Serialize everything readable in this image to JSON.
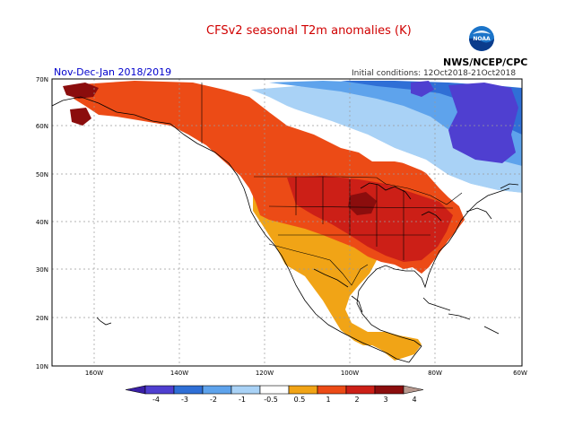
{
  "title": "CFSv2 seasonal T2m anomalies (K)",
  "period": "Nov-Dec-Jan 2018/2019",
  "initial_conditions": "Initial conditions: 12Oct2018-21Oct2018",
  "agency": "NWS/NCEP/CPC",
  "logo_text": "NOAA",
  "lat_ticks": [
    "70N",
    "60N",
    "50N",
    "40N",
    "30N",
    "20N",
    "10N"
  ],
  "lon_ticks": [
    "160W",
    "140W",
    "120W",
    "100W",
    "80W",
    "60W"
  ],
  "colorbar": {
    "labels": [
      "-4",
      "-3",
      "-2",
      "-1",
      "-0.5",
      "0.5",
      "1",
      "2",
      "3",
      "4"
    ],
    "colors": [
      "#3a1fa6",
      "#4f3fd0",
      "#2f6fd6",
      "#5ea3ec",
      "#a9d2f6",
      "#ffffff",
      "#f1a416",
      "#ec4b16",
      "#cc1f17",
      "#8b0d0d",
      "#b89a90"
    ]
  },
  "colors": {
    "strong_warm": "#8b0d0d",
    "warm": "#cc1f17",
    "moderate_warm": "#ec4b16",
    "weak_warm": "#f1a416",
    "neutral": "#ffffff",
    "weak_cool": "#a9d2f6",
    "cool": "#5ea3ec",
    "moderate_cool": "#2f6fd6",
    "strong_cool": "#4f3fd0"
  }
}
